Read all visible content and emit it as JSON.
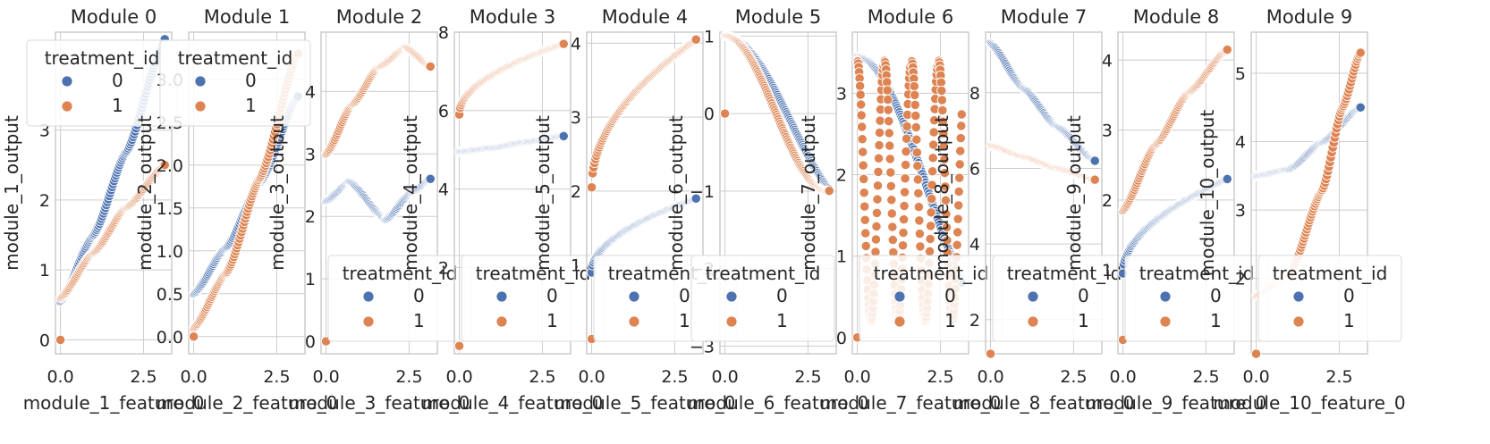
{
  "colors": {
    "series0": "#4c72b0",
    "series1": "#dd8452",
    "grid": "#cccccc",
    "background": "#ffffff"
  },
  "chart_data": [
    {
      "type": "scatter",
      "title": "Module 0",
      "xlabel": "module_1_feature_0",
      "ylabel": "module_1_output",
      "xlim": [
        -0.15,
        3.35
      ],
      "ylim": [
        -0.2,
        4.4
      ],
      "xticks": [
        0.0,
        2.5
      ],
      "xticklabels": [
        "0.0",
        "2.5"
      ],
      "yticks": [
        0,
        1,
        2,
        3
      ],
      "yticklabels": [
        "0",
        "1",
        "2",
        "3"
      ],
      "legend": {
        "title": "treatment_id",
        "entries": [
          "0",
          "1"
        ],
        "placement": "upper left"
      },
      "series": [
        {
          "name": "0",
          "model": "line",
          "points": [
            [
              0,
              0.55
            ],
            [
              1,
              1.5
            ],
            [
              2,
              2.7
            ],
            [
              3,
              4.1
            ],
            [
              3.14,
              4.3
            ]
          ]
        },
        {
          "name": "1",
          "model": "line",
          "points": [
            [
              0,
              0.6
            ],
            [
              1,
              1.25
            ],
            [
              2,
              1.9
            ],
            [
              3.14,
              2.5
            ]
          ]
        }
      ],
      "extra_points": [
        [
          0,
          0,
          1
        ]
      ]
    },
    {
      "type": "scatter",
      "title": "Module 1",
      "xlabel": "module_2_feature_0",
      "ylabel": "module_2_output",
      "xlim": [
        -0.15,
        3.35
      ],
      "ylim": [
        -0.2,
        3.55
      ],
      "xticks": [
        0.0,
        2.5
      ],
      "xticklabels": [
        "0.0",
        "2.5"
      ],
      "yticks": [
        0.0,
        0.5,
        1.0,
        1.5,
        2.0,
        2.5,
        3.0
      ],
      "yticklabels": [
        "0.0",
        "0.5",
        "1.0",
        "1.5",
        "2.0",
        "2.5",
        "3.0"
      ],
      "legend": {
        "title": "treatment_id",
        "entries": [
          "0",
          "1"
        ],
        "placement": "upper left"
      },
      "series": [
        {
          "name": "0",
          "model": "line",
          "points": [
            [
              0,
              0.5
            ],
            [
              1,
              1.05
            ],
            [
              2,
              1.8
            ],
            [
              3.14,
              2.8
            ]
          ]
        },
        {
          "name": "1",
          "model": "line",
          "points": [
            [
              0,
              0.1
            ],
            [
              1,
              0.75
            ],
            [
              2,
              1.85
            ],
            [
              3.14,
              3.3
            ]
          ]
        }
      ],
      "extra_points": [
        [
          0,
          0,
          1
        ]
      ]
    },
    {
      "type": "scatter",
      "title": "Module 2",
      "xlabel": "module_3_feature_0",
      "ylabel": "module_3_output",
      "xlim": [
        -0.15,
        3.35
      ],
      "ylim": [
        -0.2,
        4.95
      ],
      "xticks": [
        0.0,
        2.5
      ],
      "xticklabels": [
        "0.0",
        "2.5"
      ],
      "yticks": [
        0,
        1,
        2,
        3,
        4
      ],
      "yticklabels": [
        "0",
        "1",
        "2",
        "3",
        "4"
      ],
      "legend": {
        "title": "treatment_id",
        "entries": [
          "0",
          "1"
        ],
        "placement": "lower right"
      },
      "series": [
        {
          "name": "0",
          "model": "wave",
          "points": [
            [
              0,
              2.25
            ],
            [
              0.7,
              2.55
            ],
            [
              1.8,
              1.95
            ],
            [
              2.6,
              2.4
            ],
            [
              3.14,
              2.6
            ]
          ]
        },
        {
          "name": "1",
          "model": "line",
          "points": [
            [
              0,
              3.0
            ],
            [
              0.8,
              3.8
            ],
            [
              1.6,
              4.4
            ],
            [
              2.4,
              4.7
            ],
            [
              3.14,
              4.4
            ]
          ]
        }
      ],
      "extra_points": [
        [
          0,
          0,
          1
        ]
      ]
    },
    {
      "type": "scatter",
      "title": "Module 3",
      "xlabel": "module_4_feature_0",
      "ylabel": "module_4_output",
      "xlim": [
        -0.15,
        3.35
      ],
      "ylim": [
        -0.2,
        8.0
      ],
      "xticks": [
        0.0,
        2.5
      ],
      "xticklabels": [
        "0.0",
        "2.5"
      ],
      "yticks": [
        2,
        4,
        6,
        8
      ],
      "yticklabels": [
        "2",
        "4",
        "6",
        "8"
      ],
      "legend": {
        "title": "treatment_id",
        "entries": [
          "0",
          "1"
        ],
        "placement": "lower right"
      },
      "series": [
        {
          "name": "0",
          "model": "line",
          "points": [
            [
              0,
              4.95
            ],
            [
              1,
              5.05
            ],
            [
              2,
              5.2
            ],
            [
              3.14,
              5.35
            ]
          ]
        },
        {
          "name": "1",
          "model": "sqrt",
          "points": [
            [
              0,
              5.9
            ],
            [
              3.14,
              7.7
            ]
          ]
        }
      ],
      "extra_points": [
        [
          0,
          0,
          1
        ]
      ]
    },
    {
      "type": "scatter",
      "title": "Module 4",
      "xlabel": "module_5_feature_0",
      "ylabel": "module_5_output",
      "xlim": [
        -0.15,
        3.35
      ],
      "ylim": [
        -0.2,
        4.15
      ],
      "xticks": [
        0.0,
        2.5
      ],
      "xticklabels": [
        "0.0",
        "2.5"
      ],
      "yticks": [
        1,
        2,
        3,
        4
      ],
      "yticklabels": [
        "1",
        "2",
        "3",
        "4"
      ],
      "legend": {
        "title": "treatment_id",
        "entries": [
          "0",
          "1"
        ],
        "placement": "lower right"
      },
      "series": [
        {
          "name": "0",
          "model": "sqrt",
          "points": [
            [
              0,
              0.9
            ],
            [
              3.14,
              1.9
            ]
          ]
        },
        {
          "name": "1",
          "model": "sqrt",
          "points": [
            [
              0,
              2.05
            ],
            [
              3.14,
              4.05
            ]
          ]
        }
      ],
      "extra_points": [
        [
          0,
          0,
          1
        ]
      ]
    },
    {
      "type": "scatter",
      "title": "Module 5",
      "xlabel": "module_6_feature_0",
      "ylabel": "module_6_output",
      "xlim": [
        -0.15,
        3.35
      ],
      "ylim": [
        -3.1,
        1.05
      ],
      "xticks": [
        0.0,
        2.5
      ],
      "xticklabels": [
        "0.0",
        "2.5"
      ],
      "yticks": [
        -3,
        -2,
        -1,
        0,
        1
      ],
      "yticklabels": [
        "−3",
        "−2",
        "−1",
        "0",
        "1"
      ],
      "legend": {
        "title": "treatment_id",
        "entries": [
          "0",
          "1"
        ],
        "placement": "lower left"
      },
      "series": [
        {
          "name": "0",
          "model": "cos",
          "params": [
            1,
            0.82
          ],
          "points": []
        },
        {
          "name": "1",
          "model": "cos",
          "params": [
            1,
            1.0
          ],
          "points": []
        }
      ],
      "extra_points": [
        [
          0,
          0,
          1
        ]
      ]
    },
    {
      "type": "scatter",
      "title": "Module 6",
      "xlabel": "module_7_feature_0",
      "ylabel": "module_7_output",
      "xlim": [
        -0.15,
        3.35
      ],
      "ylim": [
        -0.2,
        3.75
      ],
      "xticks": [
        0.0,
        2.5
      ],
      "xticklabels": [
        "0.0",
        "2.5"
      ],
      "yticks": [
        0,
        1,
        2,
        3
      ],
      "yticklabels": [
        "0",
        "1",
        "2",
        "3"
      ],
      "legend": {
        "title": "treatment_id",
        "entries": [
          "0",
          "1"
        ],
        "placement": "lower right"
      },
      "series": [
        {
          "name": "0",
          "model": "cos",
          "params": [
            3.45,
            1.5,
            0.75
          ],
          "points": []
        },
        {
          "name": "1",
          "model": "osc",
          "params": [
            2.15,
            1.2,
            7.7
          ],
          "points": []
        }
      ],
      "extra_points": [
        [
          0,
          0,
          1
        ]
      ]
    },
    {
      "type": "scatter",
      "title": "Module 7",
      "xlabel": "module_8_feature_0",
      "ylabel": "module_8_output",
      "xlim": [
        -0.15,
        3.35
      ],
      "ylim": [
        1.1,
        9.6
      ],
      "xticks": [
        0.0,
        2.5
      ],
      "xticklabels": [
        "0.0",
        "2.5"
      ],
      "yticks": [
        2,
        4,
        6,
        8
      ],
      "yticklabels": [
        "2",
        "4",
        "6",
        "8"
      ],
      "legend": {
        "title": "treatment_id",
        "entries": [
          "0",
          "1"
        ],
        "placement": "lower right"
      },
      "series": [
        {
          "name": "0",
          "model": "line",
          "points": [
            [
              0,
              9.3
            ],
            [
              1,
              8.1
            ],
            [
              2,
              7.1
            ],
            [
              3.14,
              6.2
            ]
          ]
        },
        {
          "name": "1",
          "model": "line",
          "points": [
            [
              0,
              6.6
            ],
            [
              1,
              6.3
            ],
            [
              2,
              6.0
            ],
            [
              3.14,
              5.7
            ]
          ]
        }
      ],
      "extra_points": [
        [
          0,
          1.1,
          1
        ]
      ]
    },
    {
      "type": "scatter",
      "title": "Module 8",
      "xlabel": "module_9_feature_0",
      "ylabel": "module_9_output",
      "xlim": [
        -0.15,
        3.35
      ],
      "ylim": [
        -0.2,
        4.4
      ],
      "xticks": [
        0.0,
        2.5
      ],
      "xticklabels": [
        "0.0",
        "2.5"
      ],
      "yticks": [
        1,
        2,
        3,
        4
      ],
      "yticklabels": [
        "1",
        "2",
        "3",
        "4"
      ],
      "legend": {
        "title": "treatment_id",
        "entries": [
          "0",
          "1"
        ],
        "placement": "lower right"
      },
      "series": [
        {
          "name": "0",
          "model": "sqrt",
          "points": [
            [
              0,
              0.95
            ],
            [
              3.14,
              2.3
            ]
          ]
        },
        {
          "name": "1",
          "model": "line",
          "points": [
            [
              0,
              1.85
            ],
            [
              1,
              2.8
            ],
            [
              2,
              3.55
            ],
            [
              3.14,
              4.15
            ]
          ]
        }
      ],
      "extra_points": [
        [
          0,
          0,
          1
        ]
      ]
    },
    {
      "type": "scatter",
      "title": "Module 9",
      "xlabel": "module_10_feature_0",
      "ylabel": "module_10_output",
      "xlim": [
        -0.15,
        3.35
      ],
      "ylim": [
        0.9,
        5.6
      ],
      "xticks": [
        0.0,
        2.5
      ],
      "xticklabels": [
        "0.0",
        "2.5"
      ],
      "yticks": [
        2,
        3,
        4,
        5
      ],
      "yticklabels": [
        "2",
        "3",
        "4",
        "5"
      ],
      "legend": {
        "title": "treatment_id",
        "entries": [
          "0",
          "1"
        ],
        "placement": "lower right"
      },
      "series": [
        {
          "name": "0",
          "model": "line",
          "points": [
            [
              0,
              3.5
            ],
            [
              1,
              3.6
            ],
            [
              2,
              4.0
            ],
            [
              3.14,
              4.5
            ]
          ]
        },
        {
          "name": "1",
          "model": "line",
          "points": [
            [
              0,
              1.75
            ],
            [
              1,
              2.05
            ],
            [
              2,
              3.3
            ],
            [
              2.6,
              4.5
            ],
            [
              3.14,
              5.3
            ]
          ]
        }
      ],
      "extra_points": [
        [
          0,
          0.9,
          1
        ]
      ]
    }
  ]
}
